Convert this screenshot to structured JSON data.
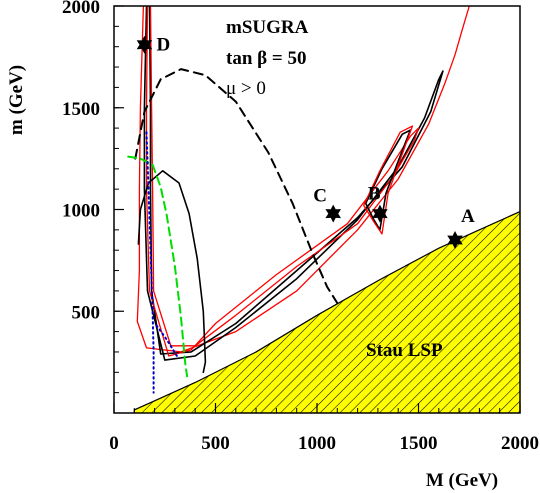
{
  "chart_data": {
    "type": "contour",
    "title": "",
    "xlabel": "M (GeV)",
    "ylabel": "m (GeV)",
    "xlim": [
      0,
      2000
    ],
    "ylim": [
      0,
      2000
    ],
    "xticks": [
      "0",
      "500",
      "1000",
      "1500",
      "2000"
    ],
    "yticks": [
      "500",
      "1000",
      "1500",
      "2000"
    ],
    "annotations": {
      "model": "mSUGRA",
      "tanbeta": "tan β = 50",
      "mu": "μ > 0",
      "excluded_region": "Stau LSP"
    },
    "colors": {
      "relic_outer": "#ff0000",
      "relic_inner": "#000000",
      "dashed_black": "#000000",
      "dashed_green": "#00dd00",
      "dotted_blue": "#0000cc",
      "stau_fill": "#ffff00",
      "hatch": "#000000"
    },
    "stau_boundary": [
      [
        100,
        0
      ],
      [
        100,
        15
      ],
      [
        200,
        60
      ],
      [
        400,
        150
      ],
      [
        700,
        300
      ],
      [
        1000,
        480
      ],
      [
        1300,
        650
      ],
      [
        1600,
        810
      ],
      [
        1800,
        900
      ],
      [
        2000,
        990
      ]
    ],
    "benchmarks": [
      {
        "label": "A",
        "x": 1680,
        "y": 850
      },
      {
        "label": "B",
        "x": 1310,
        "y": 980
      },
      {
        "label": "C",
        "x": 1080,
        "y": 980
      },
      {
        "label": "D",
        "x": 150,
        "y": 1810
      }
    ],
    "series": [
      {
        "style": "red-solid",
        "points": [
          [
            145,
            2000
          ],
          [
            130,
            1500
          ],
          [
            125,
            1100
          ],
          [
            125,
            700
          ],
          [
            115,
            450
          ],
          [
            160,
            320
          ],
          [
            330,
            300
          ],
          [
            600,
            400
          ],
          [
            900,
            600
          ],
          [
            1200,
            900
          ],
          [
            1400,
            1150
          ],
          [
            1550,
            1420
          ],
          [
            1630,
            1620
          ],
          [
            1680,
            1760
          ],
          [
            1720,
            1900
          ],
          [
            1750,
            2000
          ]
        ]
      },
      {
        "style": "black-solid",
        "points": [
          [
            160,
            2000
          ],
          [
            150,
            1500
          ],
          [
            150,
            1100
          ],
          [
            165,
            600
          ],
          [
            250,
            260
          ],
          [
            400,
            280
          ],
          [
            600,
            420
          ],
          [
            900,
            660
          ],
          [
            1200,
            950
          ],
          [
            1400,
            1210
          ],
          [
            1530,
            1450
          ],
          [
            1600,
            1640
          ],
          [
            1620,
            1680
          ],
          [
            1560,
            1480
          ],
          [
            1420,
            1210
          ],
          [
            1200,
            960
          ],
          [
            900,
            700
          ],
          [
            600,
            440
          ],
          [
            380,
            300
          ],
          [
            230,
            290
          ],
          [
            185,
            600
          ],
          [
            180,
            1100
          ],
          [
            180,
            1500
          ],
          [
            175,
            2000
          ]
        ]
      },
      {
        "style": "red-solid",
        "points": [
          [
            165,
            2000
          ],
          [
            160,
            1500
          ],
          [
            160,
            1100
          ],
          [
            175,
            600
          ],
          [
            270,
            280
          ],
          [
            380,
            310
          ],
          [
            500,
            440
          ],
          [
            800,
            680
          ],
          [
            1150,
            930
          ],
          [
            1350,
            1190
          ],
          [
            1460,
            1360
          ],
          [
            1500,
            1400
          ],
          [
            1480,
            1340
          ],
          [
            1380,
            1170
          ],
          [
            1200,
            930
          ],
          [
            900,
            720
          ],
          [
            600,
            480
          ],
          [
            400,
            330
          ],
          [
            280,
            330
          ],
          [
            195,
            600
          ],
          [
            190,
            1100
          ],
          [
            185,
            1500
          ],
          [
            180,
            2000
          ]
        ]
      },
      {
        "style": "black-solid",
        "points": [
          [
            1240,
            1030
          ],
          [
            1320,
            1200
          ],
          [
            1420,
            1370
          ],
          [
            1460,
            1390
          ],
          [
            1420,
            1290
          ],
          [
            1340,
            1080
          ],
          [
            1310,
            900
          ],
          [
            1280,
            950
          ],
          [
            1240,
            1030
          ]
        ]
      },
      {
        "style": "red-solid",
        "points": [
          [
            1230,
            1020
          ],
          [
            1310,
            1190
          ],
          [
            1410,
            1380
          ],
          [
            1470,
            1410
          ],
          [
            1430,
            1300
          ],
          [
            1350,
            1080
          ],
          [
            1320,
            880
          ],
          [
            1280,
            940
          ],
          [
            1230,
            1020
          ]
        ]
      },
      {
        "style": "black-solid",
        "points": [
          [
            120,
            830
          ],
          [
            130,
            1000
          ],
          [
            170,
            1130
          ],
          [
            240,
            1190
          ],
          [
            320,
            1130
          ],
          [
            370,
            980
          ],
          [
            410,
            760
          ],
          [
            440,
            500
          ],
          [
            450,
            250
          ],
          [
            440,
            200
          ]
        ]
      },
      {
        "style": "black-dashed",
        "points": [
          [
            105,
            1250
          ],
          [
            150,
            1480
          ],
          [
            230,
            1640
          ],
          [
            330,
            1690
          ],
          [
            450,
            1660
          ],
          [
            600,
            1530
          ],
          [
            760,
            1280
          ],
          [
            880,
            1030
          ],
          [
            980,
            780
          ],
          [
            1050,
            620
          ],
          [
            1100,
            540
          ]
        ]
      },
      {
        "style": "green-dashed",
        "points": [
          [
            70,
            1260
          ],
          [
            130,
            1250
          ],
          [
            190,
            1220
          ],
          [
            230,
            1110
          ],
          [
            260,
            970
          ],
          [
            300,
            720
          ],
          [
            330,
            470
          ],
          [
            350,
            250
          ],
          [
            360,
            180
          ]
        ]
      },
      {
        "style": "blue-dotted",
        "points": [
          [
            160,
            1380
          ],
          [
            170,
            1100
          ],
          [
            180,
            800
          ],
          [
            190,
            500
          ],
          [
            195,
            300
          ],
          [
            195,
            100
          ]
        ]
      },
      {
        "style": "blue-dotted",
        "points": [
          [
            210,
            430
          ],
          [
            260,
            360
          ],
          [
            310,
            280
          ]
        ]
      }
    ]
  }
}
